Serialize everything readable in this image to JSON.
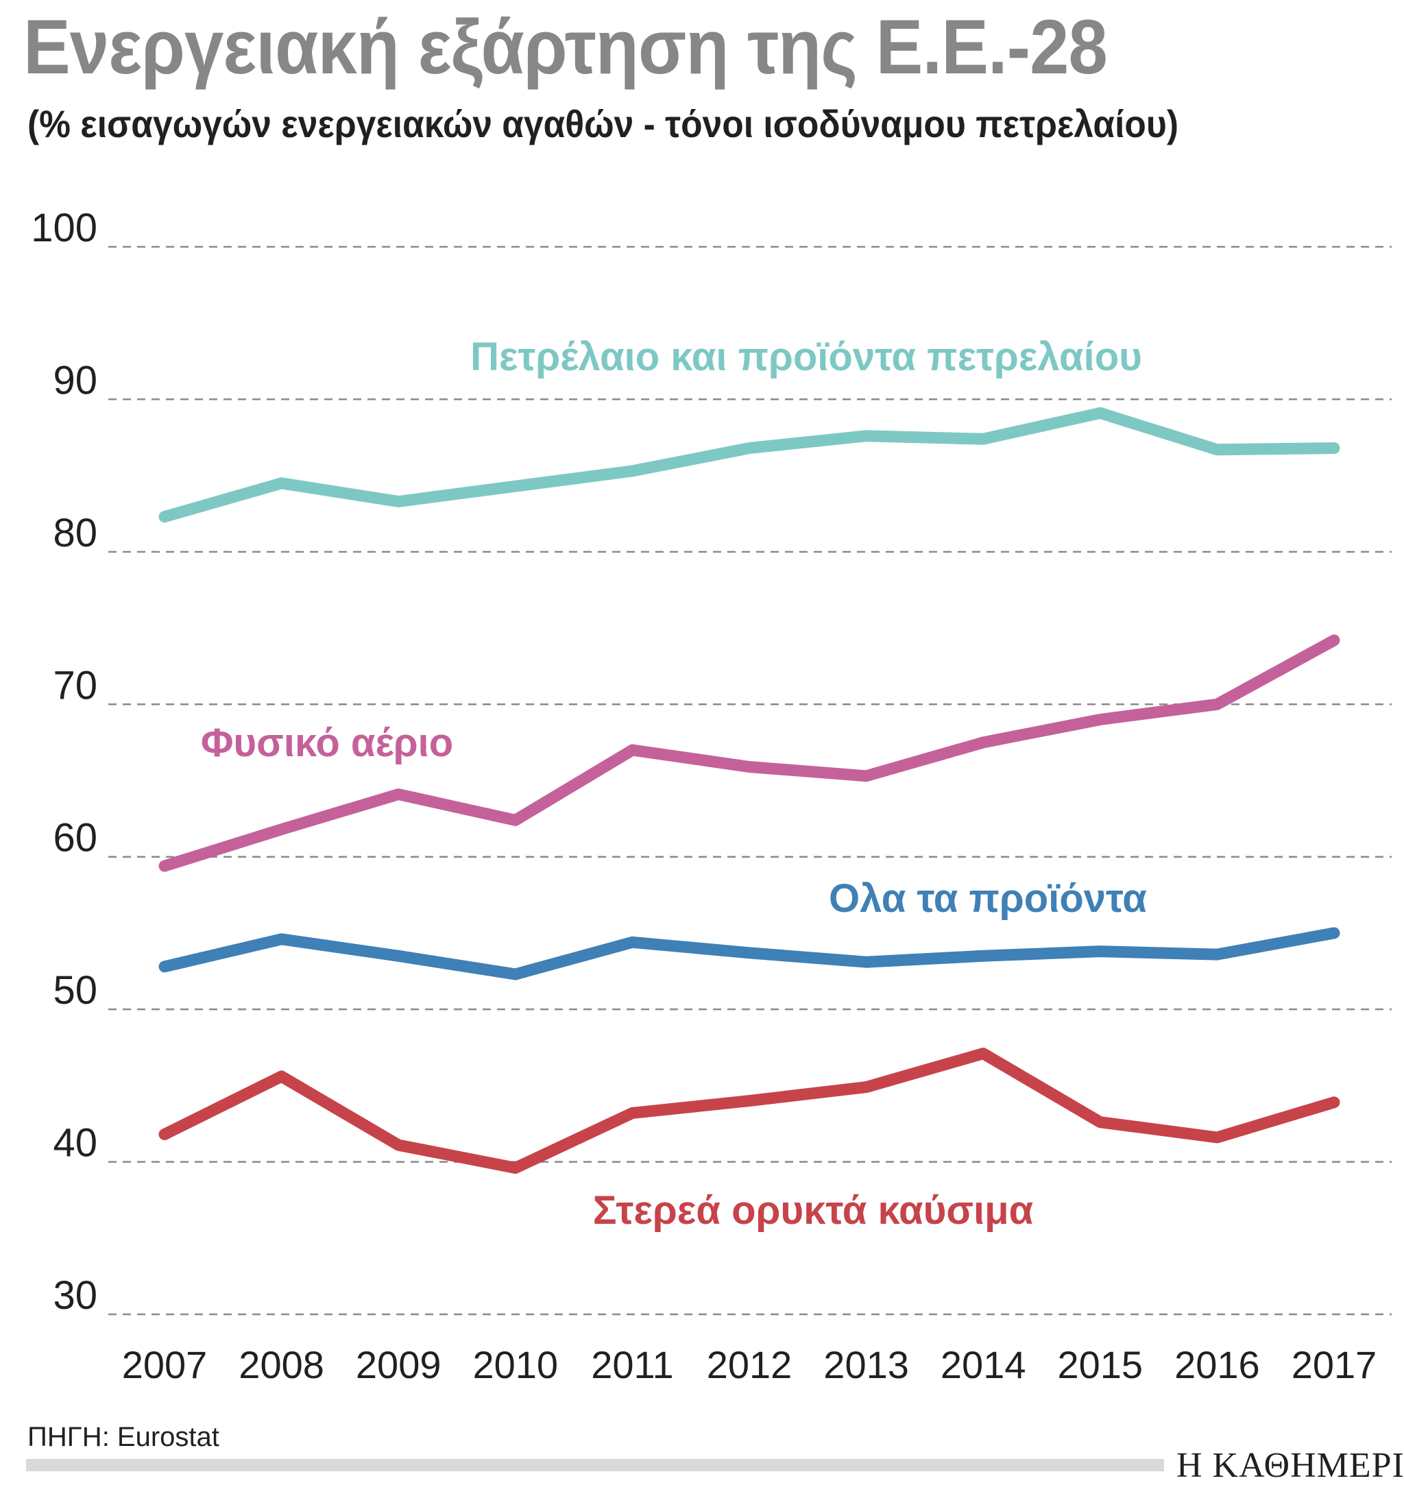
{
  "chart_data": {
    "type": "line",
    "title": "Ενεργειακή εξάρτηση της Ε.Ε.-28",
    "subtitle": "(% εισαγωγών ενεργειακών αγαθών - τόνοι ισοδύναμου πετρελαίου)",
    "x": [
      "2007",
      "2008",
      "2009",
      "2010",
      "2011",
      "2012",
      "2013",
      "2014",
      "2015",
      "2016",
      "2017"
    ],
    "ylim": [
      30,
      100
    ],
    "yticks": [
      30,
      40,
      50,
      60,
      70,
      80,
      90,
      100
    ],
    "grid": true,
    "xlabel": "",
    "ylabel": "",
    "series": [
      {
        "name": "Πετρέλαιο και προϊόντα πετρελαίου",
        "color": "#7ec8c4",
        "values": [
          82.3,
          84.5,
          83.3,
          84.3,
          85.3,
          86.8,
          87.6,
          87.4,
          89.1,
          86.7,
          86.8
        ]
      },
      {
        "name": "Φυσικό αέριο",
        "color": "#c5619a",
        "values": [
          59.4,
          61.8,
          64.1,
          62.4,
          67.0,
          65.9,
          65.3,
          67.5,
          69.0,
          70.0,
          74.2
        ]
      },
      {
        "name": "Ολα τα προϊόντα",
        "color": "#3f80b6",
        "values": [
          52.8,
          54.6,
          53.5,
          52.3,
          54.4,
          53.7,
          53.1,
          53.5,
          53.8,
          53.6,
          55.0
        ]
      },
      {
        "name": "Στερεά ορυκτά καύσιμα",
        "color": "#c7434a",
        "values": [
          41.8,
          45.6,
          41.1,
          39.6,
          43.2,
          44.0,
          44.9,
          47.1,
          42.6,
          41.6,
          43.9
        ]
      }
    ]
  },
  "footer": {
    "source": "ΠΗΓΗ: Eurostat",
    "brand": "Η ΚΑΘΗΜΕΡΙΝΗ"
  }
}
